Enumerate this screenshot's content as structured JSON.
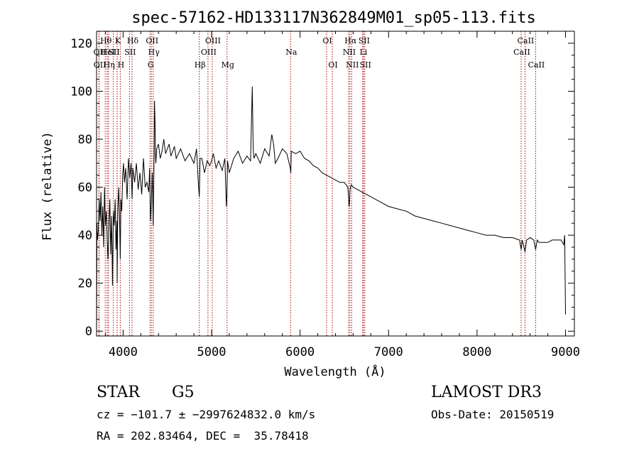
{
  "chart_data": {
    "type": "line",
    "title": "spec-57162-HD133117N362849M01_sp05-113.fits",
    "xlabel": "Wavelength (Å)",
    "ylabel": "Flux (relative)",
    "xlim": [
      3700,
      9100
    ],
    "ylim": [
      -2,
      125
    ],
    "x_ticks": [
      4000,
      5000,
      6000,
      7000,
      8000,
      9000
    ],
    "y_ticks": [
      0,
      20,
      40,
      60,
      80,
      100,
      120
    ],
    "grid": false,
    "series": [
      {
        "name": "spectrum",
        "color": "#000000",
        "x": [
          3700,
          3705,
          3710,
          3720,
          3730,
          3740,
          3750,
          3760,
          3770,
          3780,
          3790,
          3800,
          3810,
          3820,
          3830,
          3840,
          3850,
          3860,
          3870,
          3880,
          3890,
          3900,
          3910,
          3920,
          3930,
          3933,
          3940,
          3950,
          3960,
          3968,
          3975,
          3985,
          3995,
          4005,
          4015,
          4030,
          4045,
          4060,
          4075,
          4090,
          4101,
          4110,
          4130,
          4150,
          4170,
          4190,
          4210,
          4230,
          4250,
          4270,
          4290,
          4300,
          4310,
          4320,
          4330,
          4340,
          4350,
          4355,
          4360,
          4362,
          4365,
          4370,
          4380,
          4400,
          4420,
          4440,
          4460,
          4480,
          4500,
          4520,
          4540,
          4560,
          4580,
          4600,
          4650,
          4700,
          4750,
          4800,
          4830,
          4850,
          4861,
          4870,
          4890,
          4920,
          4950,
          4980,
          5000,
          5020,
          5050,
          5080,
          5120,
          5150,
          5167,
          5172,
          5180,
          5200,
          5250,
          5300,
          5350,
          5400,
          5440,
          5460,
          5470,
          5480,
          5500,
          5550,
          5600,
          5650,
          5680,
          5700,
          5720,
          5750,
          5800,
          5850,
          5889,
          5895,
          5900,
          5950,
          6000,
          6050,
          6100,
          6150,
          6200,
          6250,
          6300,
          6350,
          6400,
          6450,
          6500,
          6540,
          6555,
          6563,
          6570,
          6580,
          6600,
          6650,
          6700,
          6750,
          6800,
          6900,
          7000,
          7100,
          7200,
          7300,
          7400,
          7500,
          7600,
          7700,
          7800,
          7900,
          8000,
          8100,
          8200,
          8300,
          8400,
          8480,
          8498,
          8510,
          8542,
          8560,
          8600,
          8640,
          8662,
          8680,
          8700,
          8750,
          8800,
          8850,
          8900,
          8950,
          8980,
          8990,
          9000
        ],
        "y": [
          0,
          45,
          38,
          42,
          55,
          46,
          58,
          40,
          52,
          35,
          60,
          44,
          50,
          38,
          30,
          45,
          55,
          32,
          48,
          19,
          50,
          44,
          55,
          34,
          46,
          20,
          50,
          60,
          47,
          30,
          55,
          50,
          65,
          70,
          62,
          68,
          55,
          72,
          64,
          70,
          55,
          68,
          62,
          70,
          59,
          66,
          57,
          72,
          60,
          62,
          58,
          68,
          46,
          55,
          66,
          44,
          72,
          96,
          88,
          84,
          74,
          70,
          76,
          78,
          72,
          75,
          80,
          74,
          76,
          78,
          73,
          75,
          77,
          72,
          76,
          71,
          74,
          70,
          76,
          62,
          56,
          72,
          72,
          66,
          71,
          69,
          71,
          74,
          68,
          71,
          67,
          72,
          52,
          56,
          71,
          66,
          72,
          75,
          70,
          73,
          71,
          102,
          76,
          72,
          74,
          70,
          76,
          73,
          82,
          78,
          70,
          72,
          76,
          74,
          68,
          66,
          75,
          74,
          75,
          72,
          71,
          69,
          68,
          66,
          65,
          64,
          63,
          62,
          62,
          60,
          52,
          58,
          60,
          61,
          60,
          59,
          58,
          57,
          56,
          54,
          52,
          51,
          50,
          48,
          47,
          46,
          45,
          44,
          43,
          42,
          41,
          40,
          40,
          39,
          39,
          38,
          34,
          38,
          33,
          38,
          39,
          38,
          34,
          38,
          37,
          37,
          37,
          38,
          38,
          38,
          36,
          40,
          7
        ]
      }
    ],
    "lines": [
      {
        "name": "OII",
        "x": 3727,
        "row": 1
      },
      {
        "name": "OII",
        "x": 3729,
        "row": 2
      },
      {
        "name": "Hθ",
        "x": 3798,
        "row": 0
      },
      {
        "name": "HeI",
        "x": 3820,
        "row": 1
      },
      {
        "name": "Hη",
        "x": 3835,
        "row": 2
      },
      {
        "name": "SII",
        "x": 3889,
        "row": 1
      },
      {
        "name": "K",
        "x": 3933,
        "row": 0
      },
      {
        "name": "H",
        "x": 3968,
        "row": 2
      },
      {
        "name": "Hδ",
        "x": 4101,
        "row": 0
      },
      {
        "name": "SII",
        "x": 4072,
        "row": 1
      },
      {
        "name": "G",
        "x": 4304,
        "row": 2
      },
      {
        "name": "OII",
        "x": 4320,
        "row": 0
      },
      {
        "name": "Hγ",
        "x": 4340,
        "row": 1
      },
      {
        "name": "Hβ",
        "x": 4861,
        "row": 2
      },
      {
        "name": "OIII",
        "x": 4959,
        "row": 1
      },
      {
        "name": "OIII",
        "x": 5007,
        "row": 0
      },
      {
        "name": "Mg",
        "x": 5175,
        "row": 2
      },
      {
        "name": "Na",
        "x": 5893,
        "row": 1
      },
      {
        "name": "OI",
        "x": 6300,
        "row": 0
      },
      {
        "name": "OI",
        "x": 6364,
        "row": 2
      },
      {
        "name": "NII",
        "x": 6548,
        "row": 1
      },
      {
        "name": "Hα",
        "x": 6563,
        "row": 0
      },
      {
        "name": "NII",
        "x": 6583,
        "row": 2
      },
      {
        "name": "Li",
        "x": 6708,
        "row": 1
      },
      {
        "name": "SII",
        "x": 6716,
        "row": 0
      },
      {
        "name": "SII",
        "x": 6731,
        "row": 2
      },
      {
        "name": "CaII",
        "x": 8498,
        "row": 1
      },
      {
        "name": "CaII",
        "x": 8542,
        "row": 0
      },
      {
        "name": "CaII",
        "x": 8662,
        "row": 2
      }
    ]
  },
  "info": {
    "object_type": "STAR",
    "subclass": "G5",
    "survey": "LAMOST DR3",
    "redshift": "cz = −101.7 ± −2997624832.0 km/s",
    "obs_date": "Obs-Date: 20150519",
    "coords": "RA = 202.83464, DEC =  35.78418"
  }
}
